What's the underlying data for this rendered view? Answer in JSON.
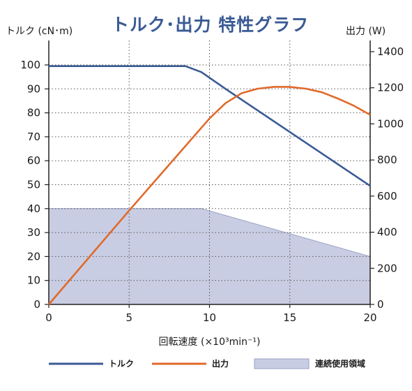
{
  "chart_data": {
    "type": "line",
    "title": "トルク･出力 特性グラフ",
    "ylabel_left": "トルク (cN･m)",
    "ylabel_right": "出力 (W)",
    "xlabel": "回転速度 (×10³min⁻¹)",
    "xlim": [
      0,
      20
    ],
    "ylim_left": [
      0,
      100
    ],
    "ylim_right": [
      0,
      1400
    ],
    "x_ticks": [
      "0",
      "5",
      "10",
      "15",
      "20"
    ],
    "y_left_ticks": [
      "0",
      "10",
      "20",
      "30",
      "40",
      "50",
      "60",
      "70",
      "80",
      "90",
      "100"
    ],
    "y_right_ticks": [
      "0",
      "200",
      "400",
      "600",
      "800",
      "1000",
      "1200",
      "1400"
    ],
    "grid": true,
    "legend_position": "bottom",
    "series": [
      {
        "name": "トルク",
        "axis": "left",
        "color": "#3a5a94",
        "x": [
          0,
          8.5,
          9.5,
          11,
          13,
          15,
          17,
          19,
          20
        ],
        "y": [
          99.5,
          99.5,
          97,
          90,
          81,
          72,
          63,
          54,
          49.5
        ]
      },
      {
        "name": "出力",
        "axis": "right",
        "color": "#e06a2b",
        "x": [
          0,
          5,
          10,
          11,
          12,
          13,
          14,
          15,
          16,
          17,
          18,
          19,
          20
        ],
        "y": [
          0,
          520,
          1030,
          1115,
          1170,
          1195,
          1205,
          1205,
          1195,
          1175,
          1140,
          1100,
          1050
        ]
      },
      {
        "name": "連続使用領域",
        "axis": "left",
        "type": "area",
        "color": "#c9cde3",
        "x": [
          0,
          9.5,
          20
        ],
        "y": [
          40,
          40,
          20
        ]
      }
    ]
  }
}
